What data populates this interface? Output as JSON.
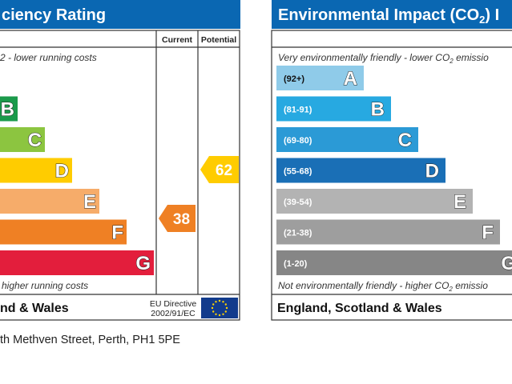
{
  "energy": {
    "title": "ciency Rating",
    "col_current": "Current",
    "col_potential": "Potential",
    "top_note": "2 - lower running costs",
    "bottom_note": "higher running costs",
    "footer_left": "nd & Wales",
    "directive_line1": "EU Directive",
    "directive_line2": "2002/91/EC",
    "bands": [
      {
        "letter": "B",
        "color": "#1b9a4b"
      },
      {
        "letter": "C",
        "color": "#8cc540"
      },
      {
        "letter": "D",
        "color": "#ffcc00"
      },
      {
        "letter": "E",
        "color": "#f6ac6a"
      },
      {
        "letter": "F",
        "color": "#ef8024"
      },
      {
        "letter": "G",
        "color": "#e31e3c"
      }
    ],
    "current": {
      "value": "38",
      "color": "#ef8024"
    },
    "potential": {
      "value": "62",
      "color": "#ffcc00"
    }
  },
  "environment": {
    "title_main": "Environmental Impact (CO",
    "title_sub": "2",
    "title_end": ") I",
    "top_note_main": "Very environmentally friendly - lower CO",
    "top_note_sub": "2",
    "top_note_end": " emissio",
    "bottom_note_main": "Not environmentally friendly - higher CO",
    "bottom_note_sub": "2",
    "bottom_note_end": " emissio",
    "footer": "England, Scotland & Wales",
    "bands": [
      {
        "range": "(92+)",
        "letter": "A",
        "color": "#8fcbe9"
      },
      {
        "range": "(81-91)",
        "letter": "B",
        "color": "#27a9e1"
      },
      {
        "range": "(69-80)",
        "letter": "C",
        "color": "#2b9ad6"
      },
      {
        "range": "(55-68)",
        "letter": "D",
        "color": "#1a6fb6"
      },
      {
        "range": "(39-54)",
        "letter": "E",
        "color": "#b3b3b3"
      },
      {
        "range": "(21-38)",
        "letter": "F",
        "color": "#9e9e9e"
      },
      {
        "range": "(1-20)",
        "letter": "G",
        "color": "#868686"
      }
    ]
  },
  "address": "th Methven Street, Perth, PH1 5PE",
  "chart_data": [
    {
      "type": "bar",
      "title": "ciency Rating",
      "categories": [
        "B",
        "C",
        "D",
        "E",
        "F",
        "G"
      ],
      "current": 38,
      "potential": 62
    },
    {
      "type": "bar",
      "title": "Environmental Impact (CO2) I",
      "categories": [
        "A",
        "B",
        "C",
        "D",
        "E",
        "F",
        "G"
      ],
      "ranges": [
        "(92+)",
        "(81-91)",
        "(69-80)",
        "(55-68)",
        "(39-54)",
        "(21-38)",
        "(1-20)"
      ]
    }
  ]
}
